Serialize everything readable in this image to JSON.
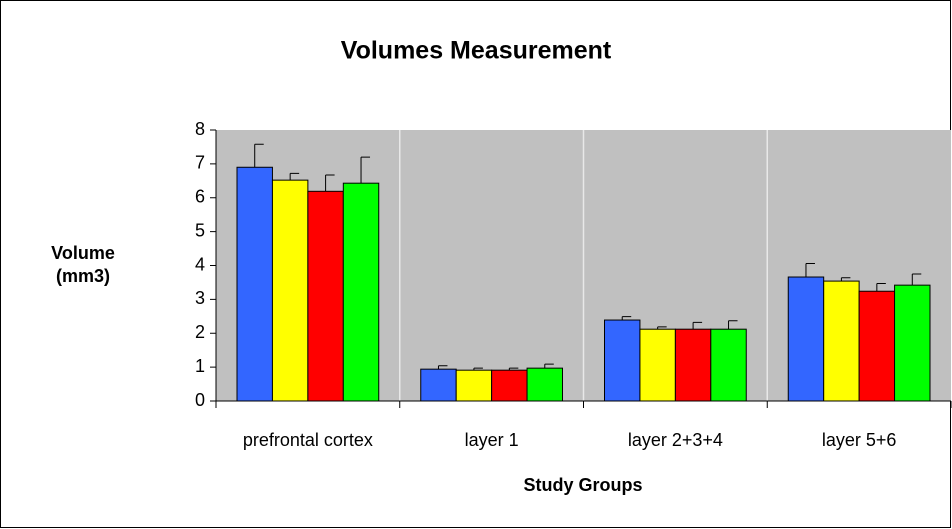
{
  "chart_data": {
    "type": "bar",
    "title": "Volumes Measurement",
    "xlabel": "Study Groups",
    "ylabel": [
      "Volume",
      "(mm3)"
    ],
    "categories": [
      "prefrontal cortex",
      "layer 1",
      "layer 2+3+4",
      "layer 5+6"
    ],
    "series": [
      {
        "color": "#3366ff",
        "values": [
          6.9,
          0.94,
          2.39,
          3.66
        ],
        "errors": [
          0.68,
          0.1,
          0.1,
          0.4
        ]
      },
      {
        "color": "#ffff00",
        "values": [
          6.52,
          0.91,
          2.12,
          3.54
        ],
        "errors": [
          0.2,
          0.06,
          0.07,
          0.1
        ]
      },
      {
        "color": "#ff0000",
        "values": [
          6.19,
          0.91,
          2.12,
          3.24
        ],
        "errors": [
          0.48,
          0.06,
          0.2,
          0.23
        ]
      },
      {
        "color": "#00ff00",
        "values": [
          6.43,
          0.97,
          2.12,
          3.42
        ],
        "errors": [
          0.77,
          0.12,
          0.25,
          0.33
        ]
      }
    ],
    "ylim": [
      0,
      8
    ],
    "yticks": [
      0,
      1,
      2,
      3,
      4,
      5,
      6,
      7,
      8
    ],
    "grid": true
  }
}
